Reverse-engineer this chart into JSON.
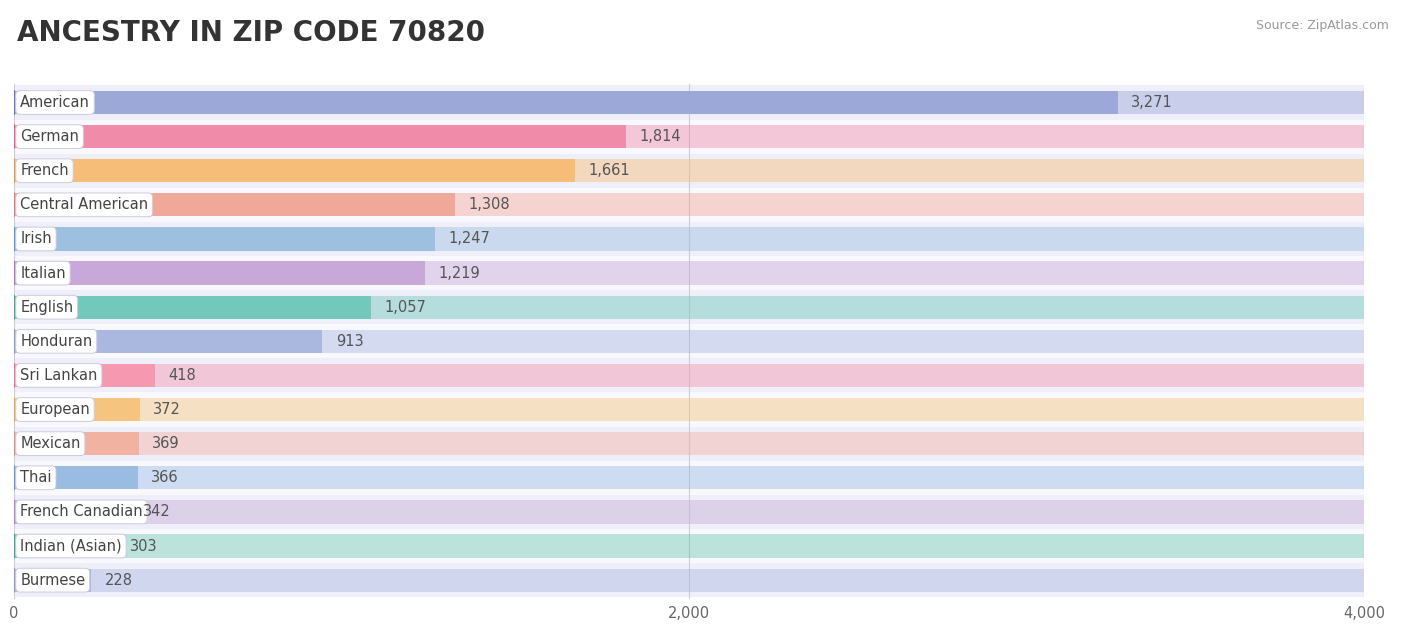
{
  "title": "ANCESTRY IN ZIP CODE 70820",
  "source": "Source: ZipAtlas.com",
  "categories": [
    "American",
    "German",
    "French",
    "Central American",
    "Irish",
    "Italian",
    "English",
    "Honduran",
    "Sri Lankan",
    "European",
    "Mexican",
    "Thai",
    "French Canadian",
    "Indian (Asian)",
    "Burmese"
  ],
  "values": [
    3271,
    1814,
    1661,
    1308,
    1247,
    1219,
    1057,
    913,
    418,
    372,
    369,
    366,
    342,
    303,
    228
  ],
  "bar_colors": [
    "#9ba8d8",
    "#f08caa",
    "#f5bd78",
    "#f0a898",
    "#9dc0e0",
    "#c8a8d8",
    "#72c8ba",
    "#aab8e0",
    "#f598b0",
    "#f5c47e",
    "#f2b2a2",
    "#9abce2",
    "#c8aed8",
    "#72c8b2",
    "#aab8e0"
  ],
  "dot_colors": [
    "#6878c0",
    "#e86090",
    "#e89840",
    "#e07868",
    "#5898d0",
    "#a878c8",
    "#3aaa98",
    "#8898d0",
    "#e87098",
    "#e8a840",
    "#e09080",
    "#6098d0",
    "#a888c8",
    "#3aaa90",
    "#8898d0"
  ],
  "bg_row_colors": [
    "#efeffa",
    "#f8f8fe"
  ],
  "xlim": [
    0,
    4000
  ],
  "xticks": [
    0,
    2000,
    4000
  ],
  "title_fontsize": 20,
  "label_fontsize": 10.5,
  "value_fontsize": 10.5,
  "background_color": "#ffffff"
}
